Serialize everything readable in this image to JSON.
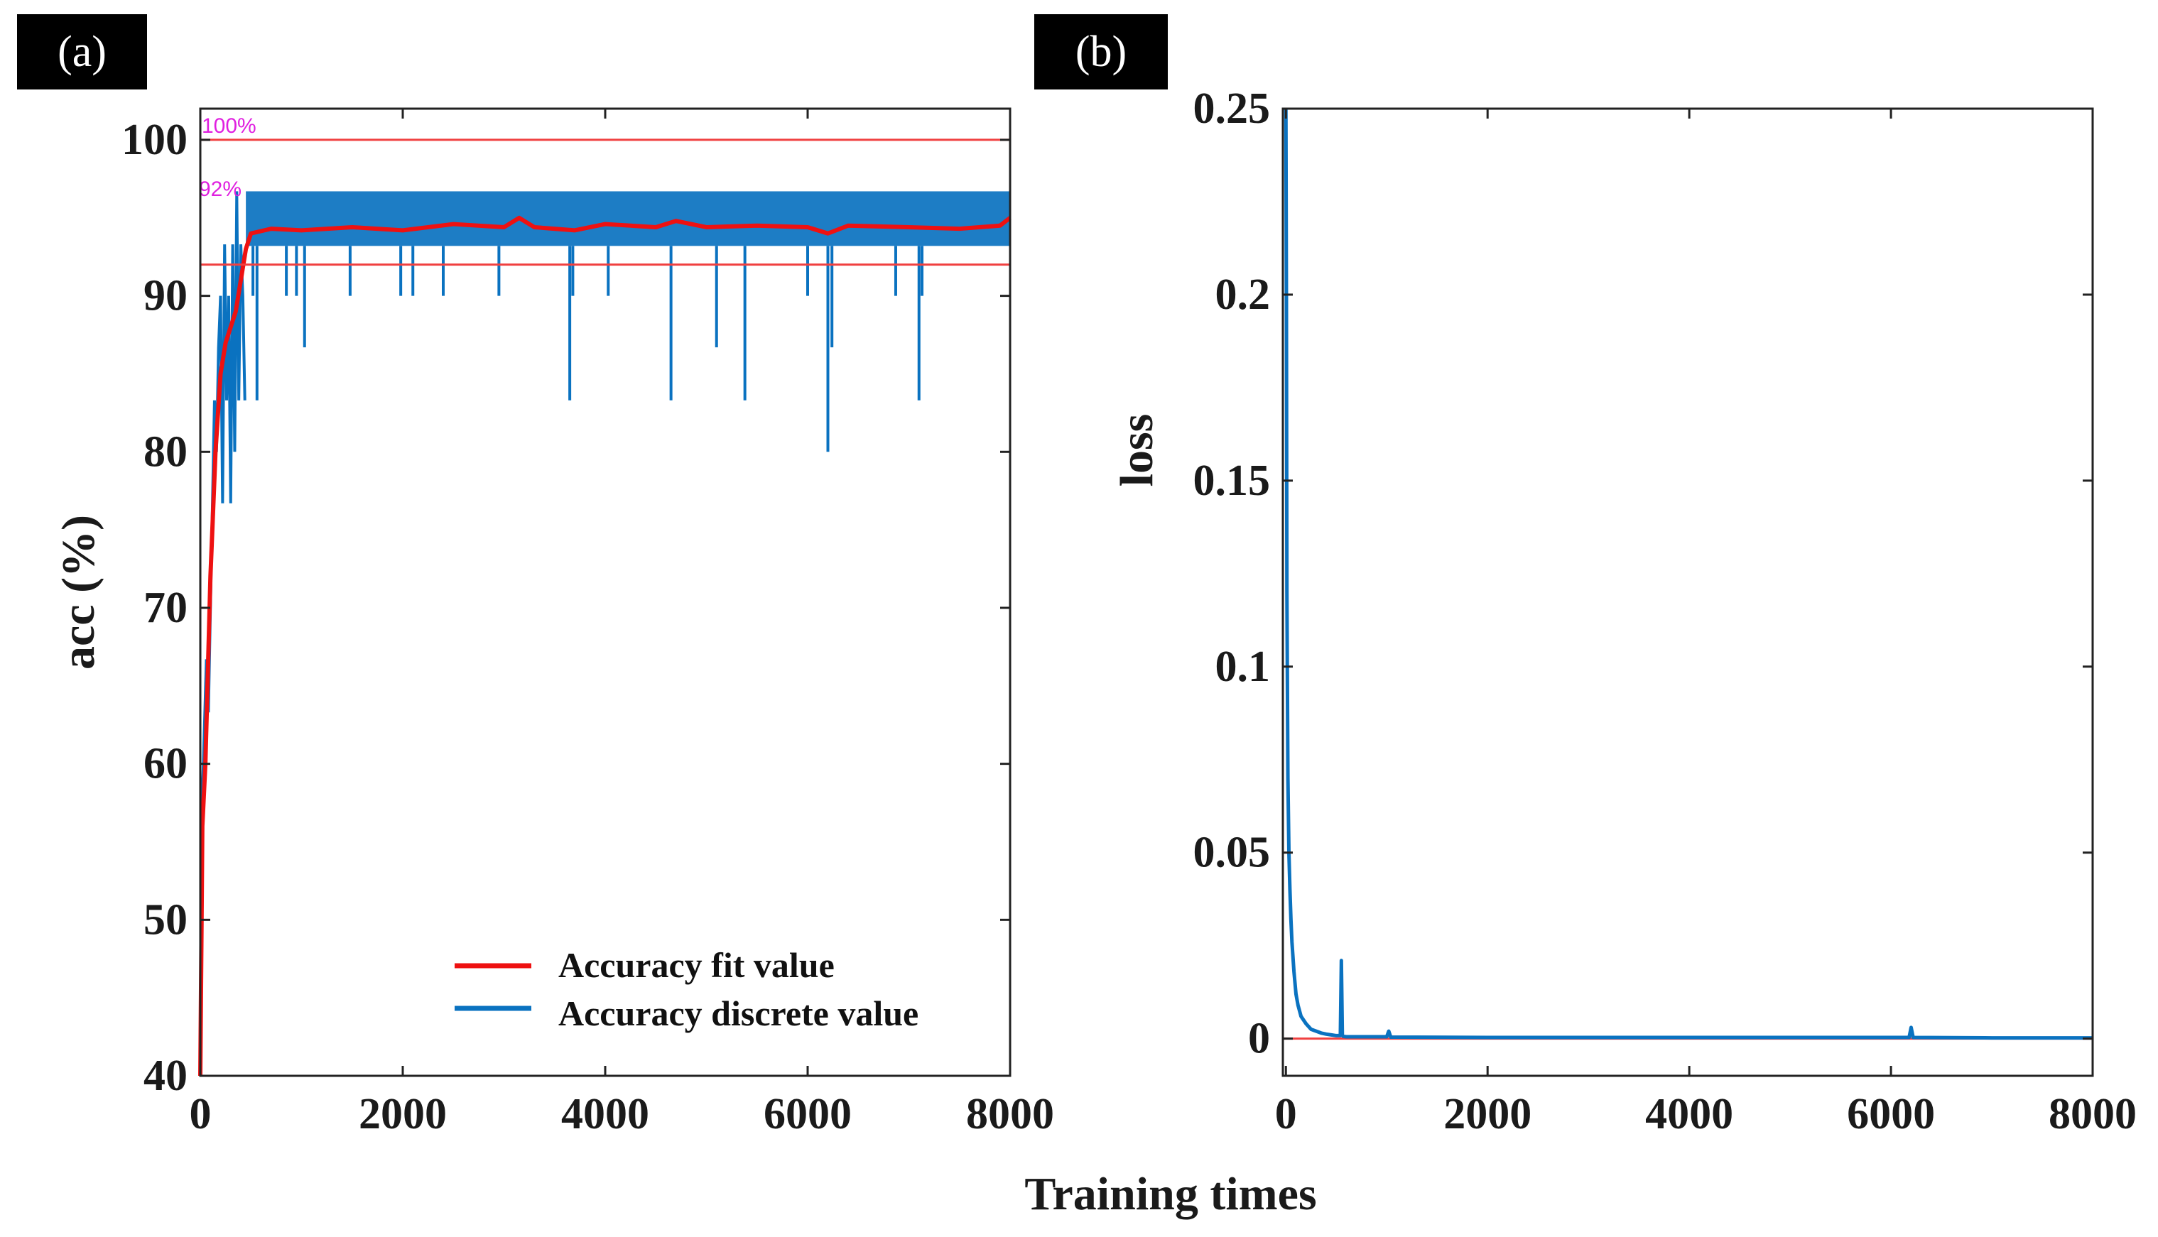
{
  "panels": {
    "a": "(a)",
    "b": "(b)"
  },
  "shared_xlabel": "Training times",
  "chart_data": [
    {
      "type": "line",
      "panel": "(a)",
      "xlabel": "Training times",
      "ylabel": "acc (%)",
      "xlim": [
        0,
        8000
      ],
      "ylim": [
        40,
        102
      ],
      "xticks": [
        0,
        2000,
        4000,
        6000,
        8000
      ],
      "yticks": [
        40,
        50,
        60,
        70,
        80,
        90,
        100
      ],
      "reference_lines": [
        {
          "y": 100,
          "label": "100%",
          "color": "#f04040"
        },
        {
          "y": 92,
          "label": "92%",
          "color": "#f04040"
        }
      ],
      "series": [
        {
          "name": "Accuracy fit value",
          "color": "#ee1111",
          "x": [
            0,
            20,
            50,
            100,
            150,
            200,
            250,
            300,
            350,
            400,
            450,
            500,
            700,
            1000,
            1500,
            2000,
            2500,
            3000,
            3150,
            3300,
            3700,
            4000,
            4500,
            4700,
            5000,
            5500,
            6000,
            6200,
            6400,
            7000,
            7500,
            7900,
            8000
          ],
          "values": [
            40,
            56,
            60,
            72,
            80,
            85,
            87,
            88,
            89,
            91,
            93,
            94,
            94.3,
            94.2,
            94.4,
            94.2,
            94.6,
            94.4,
            95.0,
            94.4,
            94.2,
            94.6,
            94.4,
            94.8,
            94.4,
            94.5,
            94.4,
            94.0,
            94.5,
            94.4,
            94.3,
            94.5,
            95.0
          ]
        },
        {
          "name": "Accuracy discrete value",
          "color": "#0a72c0",
          "band": {
            "x_start": 450,
            "x_end": 8000,
            "low": 93.2,
            "high": 96.7
          },
          "early_values": [
            [
              10,
              56.5
            ],
            [
              30,
              60
            ],
            [
              60,
              66.7
            ],
            [
              80,
              63.3
            ],
            [
              100,
              70
            ],
            [
              120,
              76.7
            ],
            [
              140,
              83.3
            ],
            [
              160,
              80
            ],
            [
              180,
              86.7
            ],
            [
              200,
              90
            ],
            [
              220,
              76.7
            ],
            [
              240,
              93.3
            ],
            [
              260,
              83.3
            ],
            [
              280,
              90
            ],
            [
              300,
              76.7
            ],
            [
              320,
              93.3
            ],
            [
              340,
              80
            ],
            [
              360,
              96.7
            ],
            [
              380,
              83.3
            ],
            [
              400,
              93.3
            ],
            [
              420,
              90
            ],
            [
              440,
              83.3
            ]
          ],
          "dips": [
            [
              520,
              90
            ],
            [
              560,
              83.3
            ],
            [
              850,
              90
            ],
            [
              950,
              90
            ],
            [
              1030,
              86.7
            ],
            [
              1480,
              90
            ],
            [
              1980,
              90
            ],
            [
              2100,
              90
            ],
            [
              2400,
              90
            ],
            [
              2950,
              90
            ],
            [
              3650,
              83.3
            ],
            [
              3680,
              90
            ],
            [
              4030,
              90
            ],
            [
              4650,
              83.3
            ],
            [
              5100,
              86.7
            ],
            [
              5380,
              83.3
            ],
            [
              6000,
              90
            ],
            [
              6200,
              80
            ],
            [
              6240,
              86.7
            ],
            [
              6870,
              90
            ],
            [
              7100,
              83.3
            ],
            [
              7130,
              90
            ]
          ]
        }
      ],
      "legend": {
        "position": "bottom-right",
        "entries": [
          "Accuracy fit value",
          "Accuracy discrete value"
        ]
      }
    },
    {
      "type": "line",
      "panel": "(b)",
      "xlabel": "Training times",
      "ylabel": "loss",
      "xlim": [
        -30,
        8000
      ],
      "ylim": [
        -0.01,
        0.25
      ],
      "xticks": [
        0,
        2000,
        4000,
        6000,
        8000
      ],
      "yticks": [
        0,
        0.05,
        0.1,
        0.15,
        0.2,
        0.25
      ],
      "reference_lines": [
        {
          "y": 0,
          "color": "#f04040"
        }
      ],
      "series": [
        {
          "name": "loss",
          "color": "#0a72c0",
          "x": [
            0,
            5,
            10,
            20,
            30,
            40,
            50,
            60,
            80,
            100,
            120,
            150,
            200,
            250,
            300,
            350,
            400,
            450,
            500,
            540,
            550,
            560,
            570,
            600,
            1000,
            1020,
            1040,
            2000,
            3000,
            4000,
            5000,
            6000,
            6180,
            6200,
            6220,
            7000,
            8000
          ],
          "values": [
            0.25,
            0.2,
            0.12,
            0.07,
            0.05,
            0.04,
            0.032,
            0.026,
            0.018,
            0.012,
            0.009,
            0.006,
            0.004,
            0.0025,
            0.002,
            0.0015,
            0.0012,
            0.001,
            0.0008,
            0.0008,
            0.021,
            0.0008,
            0.0006,
            0.0005,
            0.0005,
            0.002,
            0.0004,
            0.0003,
            0.0003,
            0.0003,
            0.0003,
            0.0003,
            0.0003,
            0.003,
            0.0003,
            0.0002,
            0.0002
          ]
        }
      ]
    }
  ]
}
